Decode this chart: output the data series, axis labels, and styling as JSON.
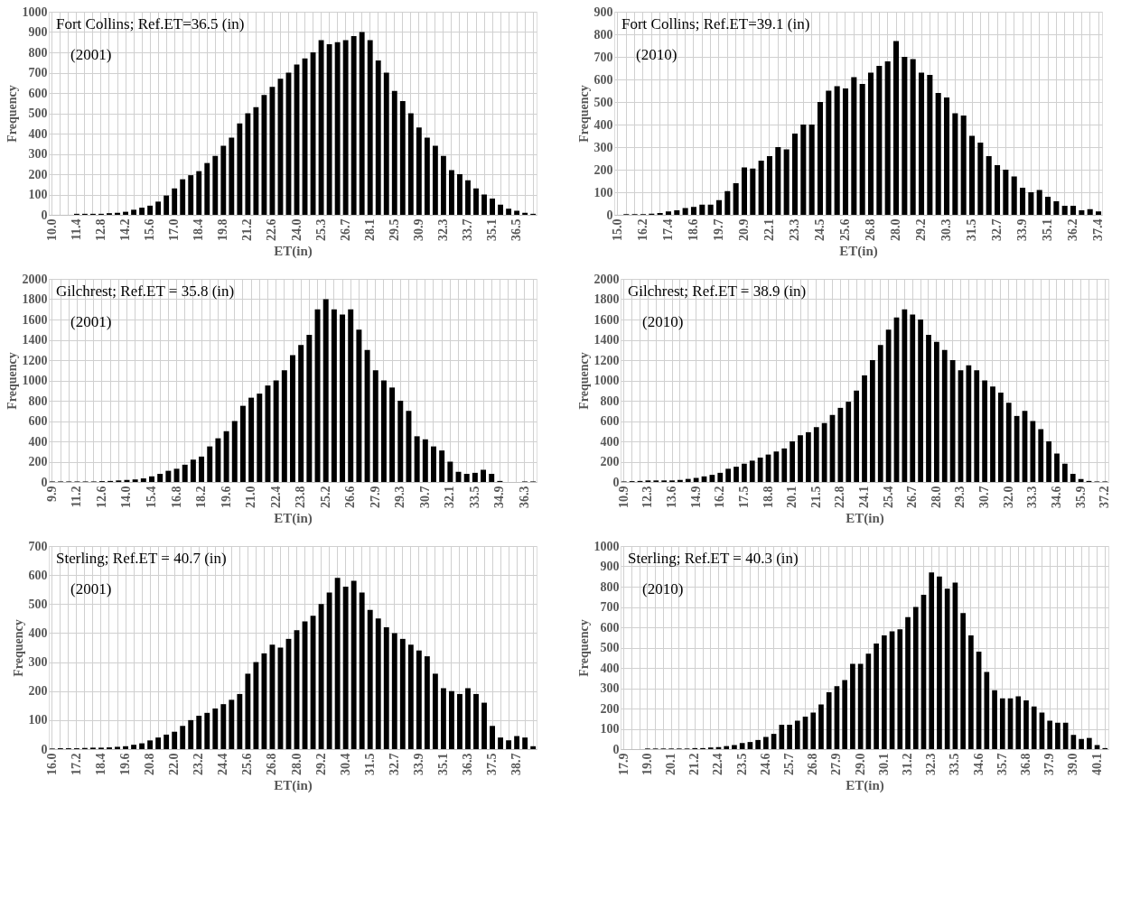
{
  "chart_data": [
    {
      "type": "bar",
      "xlabel": "ET(in)",
      "ylabel": "Frequency",
      "annotations": [
        "Fort Collins; Ref.ET=36.5 (in)",
        "(2001)"
      ],
      "grid": true,
      "ylim": [
        0,
        1000
      ],
      "yticks": [
        0,
        100,
        200,
        300,
        400,
        500,
        600,
        700,
        800,
        900,
        1000
      ],
      "categories": [
        "10.0",
        null,
        null,
        "11.4",
        null,
        null,
        "12.8",
        null,
        null,
        "14.2",
        null,
        null,
        "15.6",
        null,
        null,
        "17.0",
        null,
        null,
        "18.4",
        null,
        null,
        "19.8",
        null,
        null,
        "21.2",
        null,
        null,
        "22.6",
        null,
        null,
        "24.0",
        null,
        null,
        "25.3",
        null,
        null,
        "26.7",
        null,
        null,
        "28.1",
        null,
        null,
        "29.5",
        null,
        null,
        "30.9",
        null,
        null,
        "32.3",
        null,
        null,
        "33.7",
        null,
        null,
        "35.1",
        null,
        null,
        "36.5",
        null,
        null
      ],
      "series": [
        {
          "color": "#000000",
          "values": [
            0,
            0,
            0,
            5,
            5,
            5,
            5,
            8,
            10,
            15,
            25,
            35,
            45,
            65,
            95,
            130,
            175,
            195,
            215,
            255,
            290,
            340,
            380,
            450,
            500,
            530,
            590,
            630,
            670,
            700,
            740,
            770,
            800,
            860,
            840,
            850,
            860,
            880,
            900,
            860,
            760,
            700,
            610,
            560,
            500,
            430,
            380,
            340,
            290,
            220,
            200,
            170,
            130,
            100,
            80,
            50,
            30,
            20,
            10,
            5
          ]
        }
      ]
    },
    {
      "type": "bar",
      "xlabel": "ET(in)",
      "ylabel": "Frequency",
      "annotations": [
        "Fort Collins; Ref.ET=39.1 (in)",
        "(2010)"
      ],
      "grid": true,
      "ylim": [
        0,
        900
      ],
      "yticks": [
        0,
        100,
        200,
        300,
        400,
        500,
        600,
        700,
        800,
        900
      ],
      "categories": [
        "15.0",
        null,
        null,
        "16.2",
        null,
        null,
        "17.4",
        null,
        null,
        "18.6",
        null,
        null,
        "19.7",
        null,
        null,
        "20.9",
        null,
        null,
        "22.1",
        null,
        null,
        "23.3",
        null,
        null,
        "24.5",
        null,
        null,
        "25.6",
        null,
        null,
        "26.8",
        null,
        null,
        "28.0",
        null,
        null,
        "29.2",
        null,
        null,
        "30.3",
        null,
        null,
        "31.5",
        null,
        null,
        "32.7",
        null,
        null,
        "33.9",
        null,
        null,
        "35.1",
        null,
        null,
        "36.2",
        null,
        null,
        "37.4"
      ],
      "series": [
        {
          "color": "#000000",
          "values": [
            0,
            3,
            3,
            3,
            5,
            8,
            15,
            20,
            30,
            35,
            45,
            45,
            65,
            105,
            140,
            210,
            205,
            240,
            260,
            300,
            290,
            360,
            400,
            400,
            500,
            550,
            570,
            560,
            610,
            580,
            630,
            660,
            680,
            770,
            700,
            690,
            630,
            620,
            540,
            520,
            450,
            440,
            350,
            320,
            260,
            220,
            200,
            170,
            120,
            100,
            110,
            80,
            60,
            40,
            40,
            20,
            25,
            15
          ]
        }
      ]
    },
    {
      "type": "bar",
      "xlabel": "ET(in)",
      "ylabel": "Frequency",
      "annotations": [
        "Gilchrest; Ref.ET = 35.8 (in)",
        "(2001)"
      ],
      "grid": true,
      "ylim": [
        0,
        2000
      ],
      "yticks": [
        0,
        200,
        400,
        600,
        800,
        1000,
        1200,
        1400,
        1600,
        1800,
        2000
      ],
      "categories": [
        "9.9",
        null,
        null,
        "11.2",
        null,
        null,
        "12.6",
        null,
        null,
        "14.0",
        null,
        null,
        "15.4",
        null,
        null,
        "16.8",
        null,
        null,
        "18.2",
        null,
        null,
        "19.6",
        null,
        null,
        "21.0",
        null,
        null,
        "22.4",
        null,
        null,
        "23.8",
        null,
        null,
        "25.2",
        null,
        null,
        "26.6",
        null,
        null,
        "27.9",
        null,
        null,
        "29.3",
        null,
        null,
        "30.7",
        null,
        null,
        "32.1",
        null,
        null,
        "33.5",
        null,
        null,
        "34.9",
        null,
        null,
        "36.3",
        null
      ],
      "series": [
        {
          "color": "#000000",
          "values": [
            5,
            5,
            5,
            5,
            5,
            5,
            8,
            10,
            15,
            20,
            25,
            35,
            55,
            80,
            110,
            130,
            170,
            220,
            250,
            350,
            430,
            500,
            600,
            750,
            830,
            870,
            950,
            1000,
            1100,
            1250,
            1350,
            1450,
            1700,
            1800,
            1700,
            1650,
            1700,
            1500,
            1300,
            1100,
            1000,
            930,
            800,
            700,
            450,
            420,
            350,
            310,
            200,
            100,
            80,
            90,
            120,
            80,
            10,
            0,
            0,
            5,
            5
          ]
        }
      ]
    },
    {
      "type": "bar",
      "xlabel": "ET(in)",
      "ylabel": "Frequency",
      "annotations": [
        "Gilchrest; Ref.ET = 38.9 (in)",
        "(2010)"
      ],
      "grid": true,
      "ylim": [
        0,
        2000
      ],
      "yticks": [
        0,
        200,
        400,
        600,
        800,
        1000,
        1200,
        1400,
        1600,
        1800,
        2000
      ],
      "categories": [
        "10.9",
        null,
        null,
        "12.3",
        null,
        null,
        "13.6",
        null,
        null,
        "14.9",
        null,
        null,
        "16.2",
        null,
        null,
        "17.5",
        null,
        null,
        "18.8",
        null,
        null,
        "20.1",
        null,
        null,
        "21.5",
        null,
        null,
        "22.8",
        null,
        null,
        "24.1",
        null,
        null,
        "25.4",
        null,
        null,
        "26.7",
        null,
        null,
        "28.0",
        null,
        null,
        "29.3",
        null,
        null,
        "30.7",
        null,
        null,
        "32.0",
        null,
        null,
        "33.3",
        null,
        null,
        "34.6",
        null,
        null,
        "35.9",
        null,
        null,
        "37.2"
      ],
      "series": [
        {
          "color": "#000000",
          "values": [
            5,
            8,
            10,
            15,
            15,
            15,
            15,
            20,
            30,
            40,
            55,
            70,
            90,
            130,
            150,
            180,
            210,
            240,
            270,
            300,
            330,
            400,
            460,
            490,
            540,
            580,
            660,
            730,
            790,
            900,
            1050,
            1200,
            1350,
            1500,
            1620,
            1700,
            1650,
            1600,
            1450,
            1380,
            1300,
            1200,
            1100,
            1150,
            1100,
            1000,
            940,
            880,
            780,
            650,
            700,
            600,
            520,
            400,
            280,
            180,
            80,
            30,
            10,
            5,
            5
          ]
        }
      ]
    },
    {
      "type": "bar",
      "xlabel": "ET(in)",
      "ylabel": "Frequency",
      "annotations": [
        "Sterling;  Ref.ET = 40.7 (in)",
        "(2001)"
      ],
      "grid": true,
      "ylim": [
        0,
        700
      ],
      "yticks": [
        0,
        100,
        200,
        300,
        400,
        500,
        600,
        700
      ],
      "categories": [
        "16.0",
        null,
        null,
        "17.2",
        null,
        null,
        "18.4",
        null,
        null,
        "19.6",
        null,
        null,
        "20.8",
        null,
        null,
        "22.0",
        null,
        null,
        "23.2",
        null,
        null,
        "24.4",
        null,
        null,
        "25.6",
        null,
        null,
        "26.8",
        null,
        null,
        "28.0",
        null,
        null,
        "29.2",
        null,
        null,
        "30.4",
        null,
        null,
        "31.5",
        null,
        null,
        "32.7",
        null,
        null,
        "33.9",
        null,
        null,
        "35.1",
        null,
        null,
        "36.3",
        null,
        null,
        "37.5",
        null,
        null,
        "38.7",
        null,
        null
      ],
      "series": [
        {
          "color": "#000000",
          "values": [
            2,
            3,
            3,
            3,
            4,
            5,
            5,
            6,
            8,
            10,
            15,
            20,
            30,
            40,
            50,
            60,
            80,
            100,
            115,
            125,
            140,
            155,
            170,
            190,
            260,
            300,
            330,
            360,
            350,
            380,
            410,
            440,
            460,
            500,
            540,
            590,
            560,
            580,
            540,
            480,
            450,
            420,
            400,
            380,
            360,
            340,
            320,
            260,
            210,
            200,
            190,
            210,
            190,
            160,
            80,
            40,
            30,
            45,
            40,
            10
          ]
        }
      ]
    },
    {
      "type": "bar",
      "xlabel": "ET(in)",
      "ylabel": "Frequency",
      "annotations": [
        "Sterling;  Ref.ET = 40.3 (in)",
        "(2010)"
      ],
      "grid": true,
      "ylim": [
        0,
        1000
      ],
      "yticks": [
        0,
        100,
        200,
        300,
        400,
        500,
        600,
        700,
        800,
        900,
        1000
      ],
      "categories": [
        "17.9",
        null,
        null,
        "19.0",
        null,
        null,
        "20.1",
        null,
        null,
        "21.2",
        null,
        null,
        "22.4",
        null,
        null,
        "23.5",
        null,
        null,
        "24.6",
        null,
        null,
        "25.7",
        null,
        null,
        "26.8",
        null,
        null,
        "27.9",
        null,
        null,
        "29.0",
        null,
        null,
        "30.1",
        null,
        null,
        "31.2",
        null,
        null,
        "32.3",
        null,
        null,
        "33.5",
        null,
        null,
        "34.6",
        null,
        null,
        "35.7",
        null,
        null,
        "36.8",
        null,
        null,
        "37.9",
        null,
        null,
        "39.0",
        null,
        null,
        "40.1",
        null
      ],
      "series": [
        {
          "color": "#000000",
          "values": [
            0,
            0,
            0,
            3,
            3,
            3,
            3,
            3,
            3,
            5,
            5,
            8,
            10,
            15,
            20,
            30,
            35,
            45,
            60,
            75,
            120,
            120,
            140,
            160,
            180,
            220,
            280,
            310,
            340,
            420,
            420,
            470,
            520,
            560,
            580,
            590,
            650,
            700,
            760,
            870,
            850,
            790,
            820,
            670,
            560,
            480,
            380,
            290,
            250,
            250,
            260,
            240,
            210,
            180,
            140,
            130,
            130,
            70,
            50,
            55,
            20,
            5
          ]
        }
      ]
    }
  ]
}
